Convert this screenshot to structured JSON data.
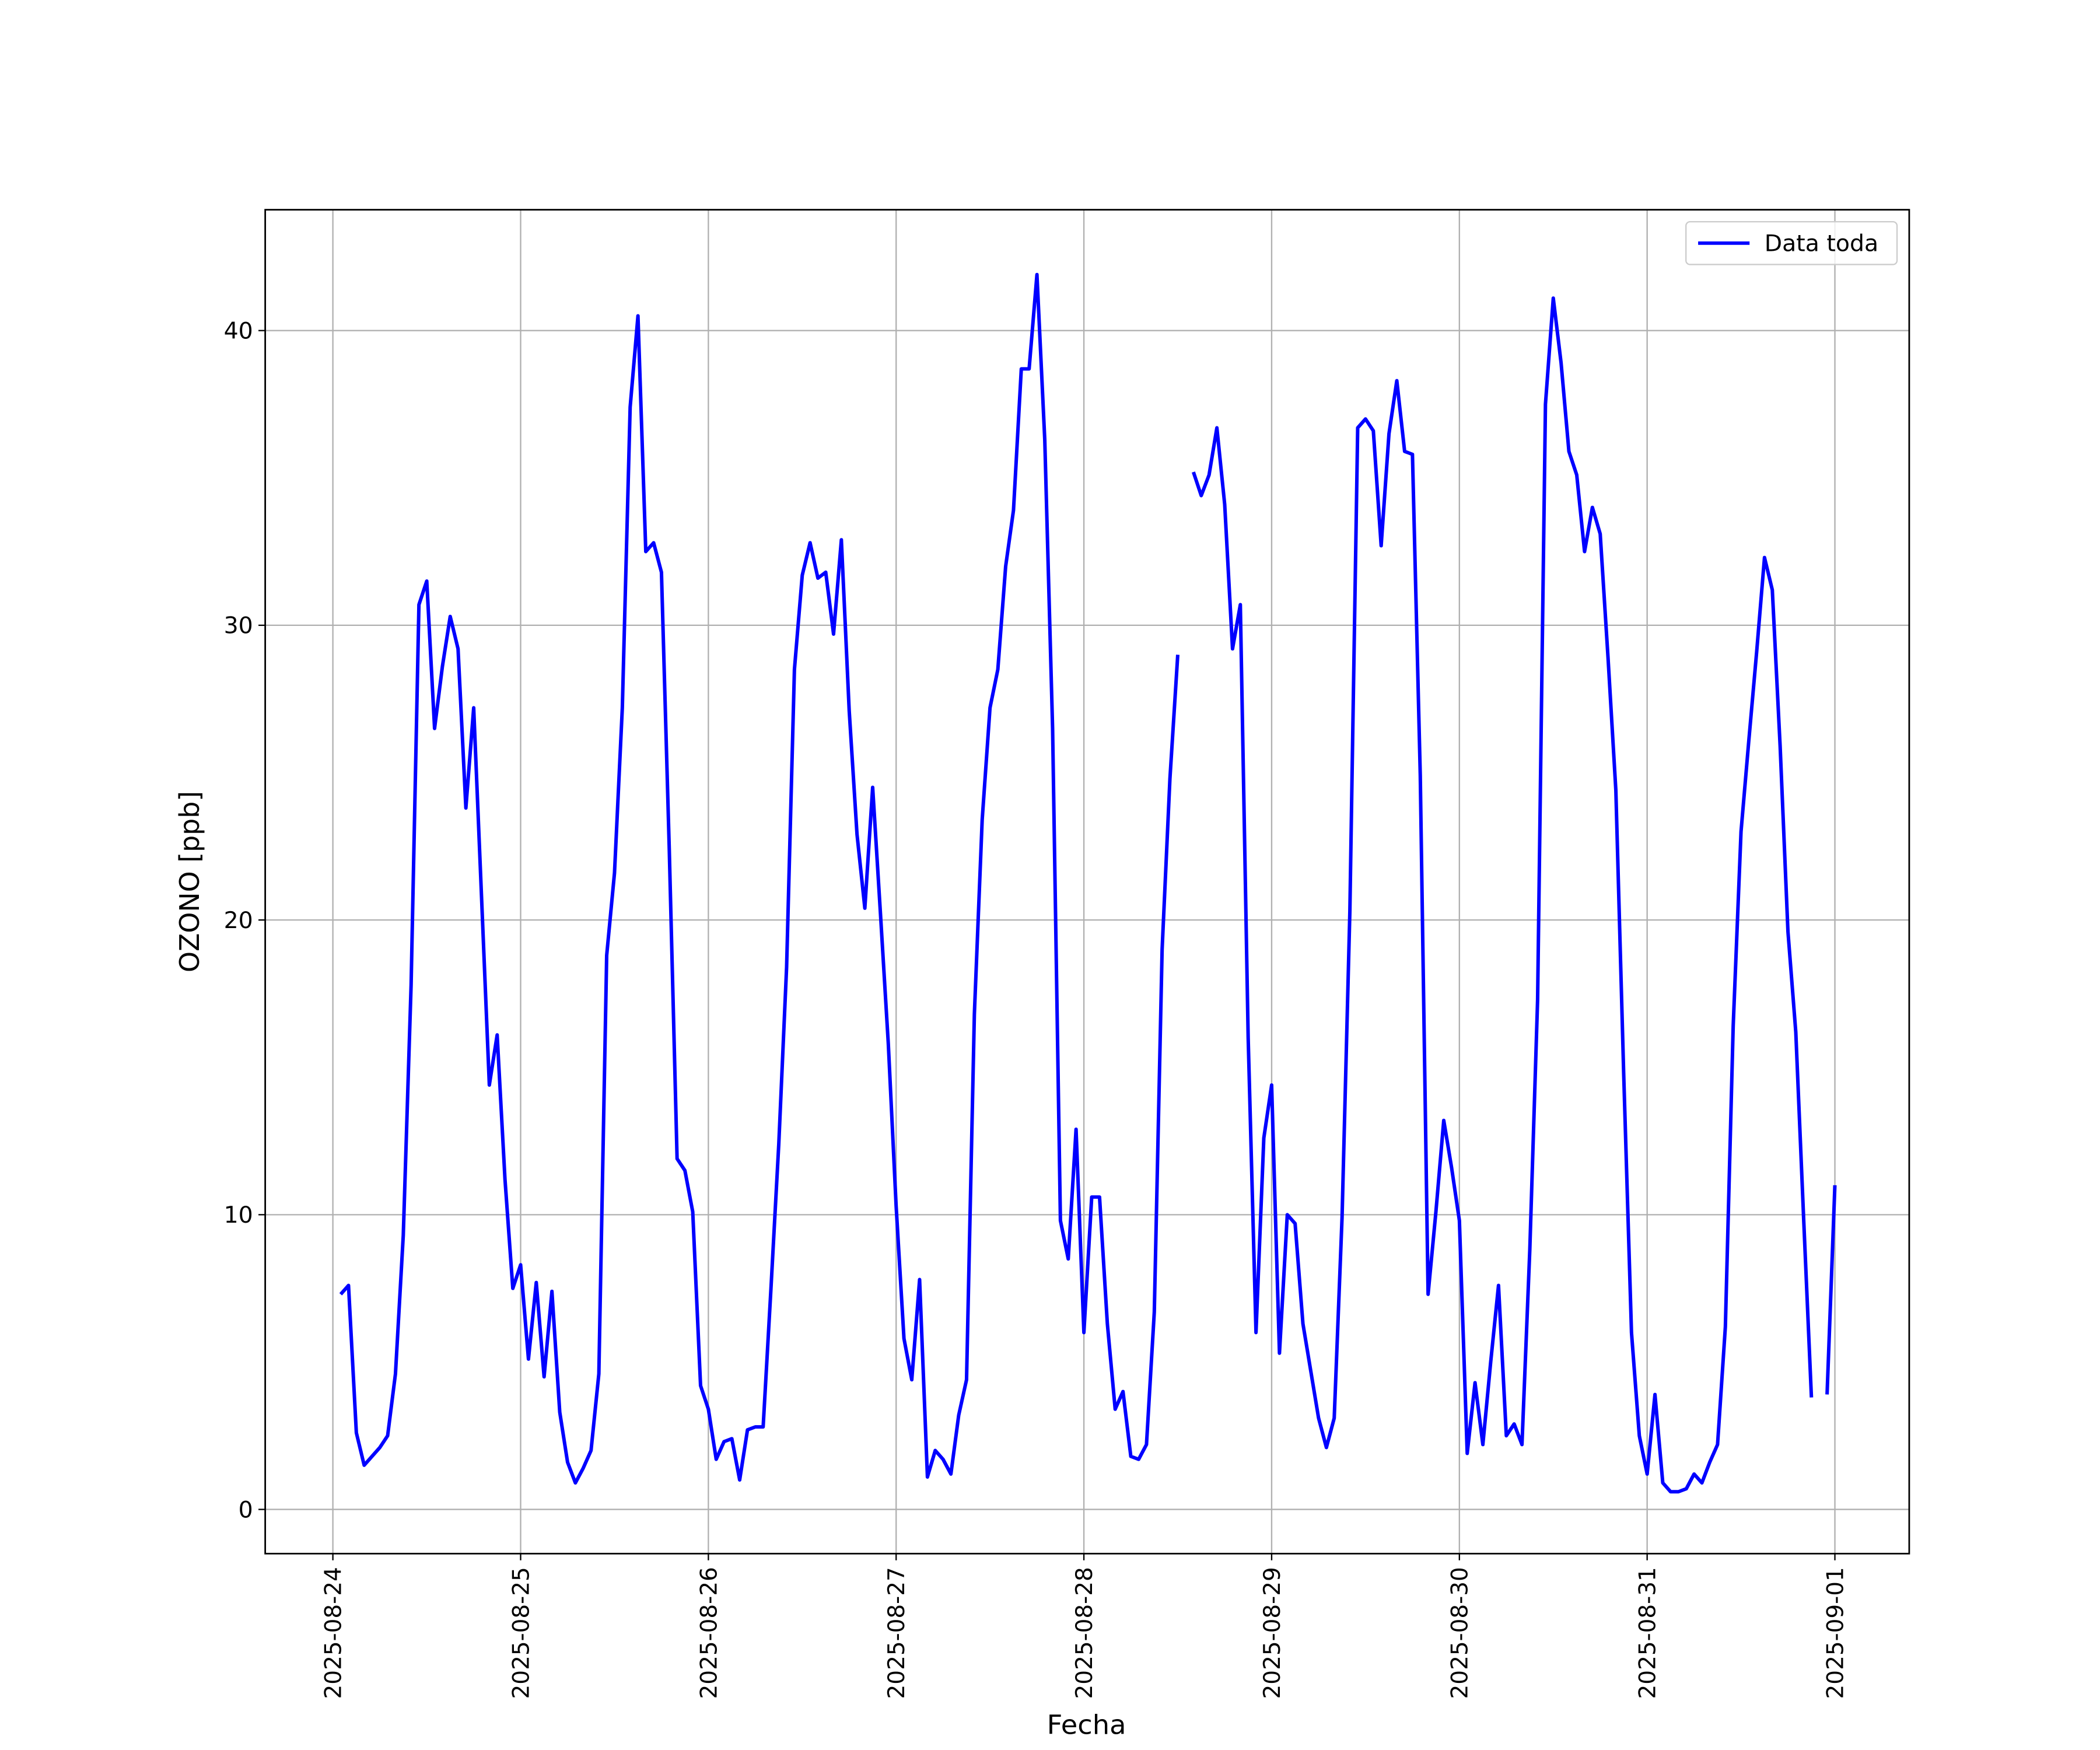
{
  "chart_data": {
    "type": "line",
    "xlabel": "Fecha",
    "ylabel": "OZONO [ppb]",
    "grid": true,
    "legend": "upper right",
    "xlim": [
      "2025-08-23T15:21",
      "2025-09-01T09:30"
    ],
    "ylim": [
      -1.5,
      44.1
    ],
    "yticks": [
      0,
      10,
      20,
      30,
      40
    ],
    "xticks": [
      {
        "value": "2025-08-24T00:00",
        "label": "2025-08-24"
      },
      {
        "value": "2025-08-25T00:00",
        "label": "2025-08-25"
      },
      {
        "value": "2025-08-26T00:00",
        "label": "2025-08-26"
      },
      {
        "value": "2025-08-27T00:00",
        "label": "2025-08-27"
      },
      {
        "value": "2025-08-28T00:00",
        "label": "2025-08-28"
      },
      {
        "value": "2025-08-29T00:00",
        "label": "2025-08-29"
      },
      {
        "value": "2025-08-30T00:00",
        "label": "2025-08-30"
      },
      {
        "value": "2025-08-31T00:00",
        "label": "2025-08-31"
      },
      {
        "value": "2025-09-01T00:00",
        "label": "2025-09-01"
      }
    ],
    "x": [
      "2025-08-24T01:00",
      "2025-08-24T02:00",
      "2025-08-24T03:00",
      "2025-08-24T04:00",
      "2025-08-24T05:00",
      "2025-08-24T06:00",
      "2025-08-24T07:00",
      "2025-08-24T08:00",
      "2025-08-24T09:00",
      "2025-08-24T10:00",
      "2025-08-24T11:00",
      "2025-08-24T12:00",
      "2025-08-24T13:00",
      "2025-08-24T14:00",
      "2025-08-24T15:00",
      "2025-08-24T16:00",
      "2025-08-24T17:00",
      "2025-08-24T18:00",
      "2025-08-24T19:00",
      "2025-08-24T20:00",
      "2025-08-24T21:00",
      "2025-08-24T22:00",
      "2025-08-24T23:00",
      "2025-08-25T00:00",
      "2025-08-25T01:00",
      "2025-08-25T02:00",
      "2025-08-25T03:00",
      "2025-08-25T04:00",
      "2025-08-25T05:00",
      "2025-08-25T06:00",
      "2025-08-25T07:00",
      "2025-08-25T08:00",
      "2025-08-25T09:00",
      "2025-08-25T10:00",
      "2025-08-25T11:00",
      "2025-08-25T12:00",
      "2025-08-25T13:00",
      "2025-08-25T14:00",
      "2025-08-25T15:00",
      "2025-08-25T16:00",
      "2025-08-25T17:00",
      "2025-08-25T18:00",
      "2025-08-25T19:00",
      "2025-08-25T20:00",
      "2025-08-25T21:00",
      "2025-08-25T22:00",
      "2025-08-25T23:00",
      "2025-08-26T00:00",
      "2025-08-26T01:00",
      "2025-08-26T02:00",
      "2025-08-26T03:00",
      "2025-08-26T04:00",
      "2025-08-26T05:00",
      "2025-08-26T06:00",
      "2025-08-26T07:00",
      "2025-08-26T08:00",
      "2025-08-26T09:00",
      "2025-08-26T10:00",
      "2025-08-26T11:00",
      "2025-08-26T12:00",
      "2025-08-26T13:00",
      "2025-08-26T14:00",
      "2025-08-26T15:00",
      "2025-08-26T16:00",
      "2025-08-26T17:00",
      "2025-08-26T18:00",
      "2025-08-26T19:00",
      "2025-08-26T20:00",
      "2025-08-26T21:00",
      "2025-08-26T22:00",
      "2025-08-26T23:00",
      "2025-08-27T00:00",
      "2025-08-27T01:00",
      "2025-08-27T02:00",
      "2025-08-27T03:00",
      "2025-08-27T04:00",
      "2025-08-27T05:00",
      "2025-08-27T06:00",
      "2025-08-27T07:00",
      "2025-08-27T08:00",
      "2025-08-27T09:00",
      "2025-08-27T10:00",
      "2025-08-27T11:00",
      "2025-08-27T12:00",
      "2025-08-27T13:00",
      "2025-08-27T14:00",
      "2025-08-27T15:00",
      "2025-08-27T16:00",
      "2025-08-27T17:00",
      "2025-08-27T18:00",
      "2025-08-27T19:00",
      "2025-08-27T20:00",
      "2025-08-27T21:00",
      "2025-08-27T22:00",
      "2025-08-27T23:00",
      "2025-08-28T00:00",
      "2025-08-28T01:00",
      "2025-08-28T02:00",
      "2025-08-28T03:00",
      "2025-08-28T04:00",
      "2025-08-28T05:00",
      "2025-08-28T06:00",
      "2025-08-28T07:00",
      "2025-08-28T08:00",
      "2025-08-28T09:00",
      "2025-08-28T10:00",
      "2025-08-28T11:00",
      "2025-08-28T12:00",
      "2025-08-28T13:00",
      "2025-08-28T14:00",
      "2025-08-28T15:00",
      "2025-08-28T16:00",
      "2025-08-28T17:00",
      "2025-08-28T18:00",
      "2025-08-28T19:00",
      "2025-08-28T20:00",
      "2025-08-28T21:00",
      "2025-08-28T22:00",
      "2025-08-28T23:00",
      "2025-08-29T00:00",
      "2025-08-29T01:00",
      "2025-08-29T02:00",
      "2025-08-29T03:00",
      "2025-08-29T04:00",
      "2025-08-29T05:00",
      "2025-08-29T06:00",
      "2025-08-29T07:00",
      "2025-08-29T08:00",
      "2025-08-29T09:00",
      "2025-08-29T10:00",
      "2025-08-29T11:00",
      "2025-08-29T12:00",
      "2025-08-29T13:00",
      "2025-08-29T14:00",
      "2025-08-29T15:00",
      "2025-08-29T16:00",
      "2025-08-29T17:00",
      "2025-08-29T18:00",
      "2025-08-29T19:00",
      "2025-08-29T20:00",
      "2025-08-29T21:00",
      "2025-08-29T22:00",
      "2025-08-29T23:00",
      "2025-08-30T00:00",
      "2025-08-30T01:00",
      "2025-08-30T02:00",
      "2025-08-30T03:00",
      "2025-08-30T04:00",
      "2025-08-30T05:00",
      "2025-08-30T06:00",
      "2025-08-30T07:00",
      "2025-08-30T08:00",
      "2025-08-30T09:00",
      "2025-08-30T10:00",
      "2025-08-30T11:00",
      "2025-08-30T12:00",
      "2025-08-30T13:00",
      "2025-08-30T14:00",
      "2025-08-30T15:00",
      "2025-08-30T16:00",
      "2025-08-30T17:00",
      "2025-08-30T18:00",
      "2025-08-30T19:00",
      "2025-08-30T20:00",
      "2025-08-30T21:00",
      "2025-08-30T22:00",
      "2025-08-30T23:00",
      "2025-08-31T00:00",
      "2025-08-31T01:00",
      "2025-08-31T02:00",
      "2025-08-31T03:00",
      "2025-08-31T04:00",
      "2025-08-31T05:00",
      "2025-08-31T06:00",
      "2025-08-31T07:00",
      "2025-08-31T08:00",
      "2025-08-31T09:00",
      "2025-08-31T10:00",
      "2025-08-31T11:00",
      "2025-08-31T12:00",
      "2025-08-31T13:00",
      "2025-08-31T14:00",
      "2025-08-31T15:00",
      "2025-08-31T16:00",
      "2025-08-31T17:00",
      "2025-08-31T18:00",
      "2025-08-31T19:00",
      "2025-08-31T20:00",
      "2025-08-31T21:00",
      "2025-08-31T22:00",
      "2025-08-31T23:00",
      "2025-09-01T00:00"
    ],
    "series": [
      {
        "name": "Data toda",
        "color": "#0000ff",
        "values": [
          7.3,
          7.6,
          2.6,
          1.5,
          1.8,
          2.1,
          2.5,
          4.6,
          9.3,
          17.8,
          30.7,
          31.5,
          26.5,
          28.6,
          30.3,
          29.2,
          23.8,
          27.2,
          20.8,
          14.4,
          16.1,
          11.2,
          7.5,
          8.3,
          5.1,
          7.7,
          4.5,
          7.4,
          3.3,
          1.6,
          0.9,
          1.4,
          2.0,
          4.6,
          18.8,
          21.6,
          27.2,
          37.4,
          40.5,
          32.5,
          32.8,
          31.8,
          22.4,
          11.9,
          11.5,
          10.1,
          4.2,
          3.4,
          1.7,
          2.3,
          2.4,
          1.0,
          2.7,
          2.8,
          2.8,
          7.5,
          12.4,
          18.4,
          28.5,
          31.7,
          32.8,
          31.6,
          31.8,
          29.7,
          32.9,
          27.1,
          22.9,
          20.4,
          24.5,
          20.2,
          15.8,
          10.3,
          5.8,
          4.4,
          7.8,
          1.1,
          2.0,
          1.7,
          1.2,
          3.2,
          4.4,
          16.8,
          23.4,
          27.2,
          28.5,
          32.0,
          33.9,
          38.7,
          38.7,
          41.9,
          36.3,
          26.5,
          9.8,
          8.5,
          12.9,
          6.0,
          10.6,
          10.6,
          6.3,
          3.4,
          4.0,
          1.8,
          1.7,
          2.2,
          6.7,
          19.0,
          24.8,
          29.0,
          null,
          35.2,
          34.4,
          35.1,
          36.7,
          34.1,
          29.2,
          30.7,
          16.0,
          6.0,
          12.6,
          14.4,
          5.3,
          10.0,
          9.7,
          6.3,
          4.7,
          3.1,
          2.1,
          3.1,
          9.9,
          20.3,
          36.7,
          37.0,
          36.6,
          32.7,
          36.5,
          38.3,
          35.9,
          35.8,
          24.9,
          7.3,
          10.1,
          13.2,
          11.6,
          9.8,
          1.9,
          4.3,
          2.2,
          5.0,
          7.6,
          2.5,
          2.9,
          2.2,
          8.8,
          17.3,
          37.5,
          41.1,
          38.9,
          35.9,
          35.1,
          32.5,
          34.0,
          33.1,
          28.9,
          24.4,
          14.8,
          6.0,
          2.5,
          1.2,
          3.9,
          0.9,
          0.6,
          0.6,
          0.7,
          1.2,
          0.9,
          1.6,
          2.2,
          6.2,
          16.4,
          23.0,
          26.1,
          29.1,
          32.3,
          31.2,
          25.9,
          19.6,
          16.2,
          9.9,
          3.8,
          null,
          3.9,
          11.0
        ]
      }
    ]
  }
}
